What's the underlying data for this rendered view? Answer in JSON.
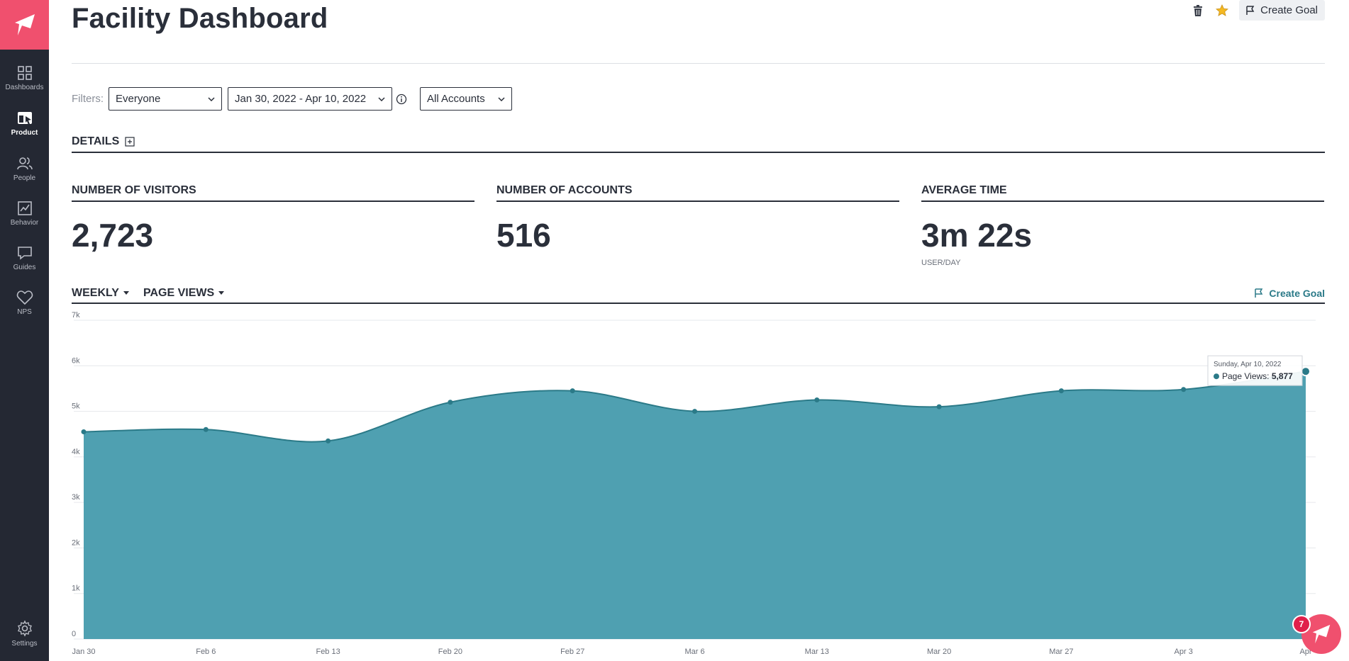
{
  "sidebar": {
    "items": [
      {
        "label": "Dashboards",
        "icon": "grid-icon"
      },
      {
        "label": "Product",
        "icon": "product-icon"
      },
      {
        "label": "People",
        "icon": "people-icon"
      },
      {
        "label": "Behavior",
        "icon": "chart-icon"
      },
      {
        "label": "Guides",
        "icon": "chat-icon"
      },
      {
        "label": "NPS",
        "icon": "heart-icon"
      }
    ],
    "settings_label": "Settings"
  },
  "header": {
    "title": "Facility Dashboard",
    "create_goal_label": "Create Goal"
  },
  "filters": {
    "label": "Filters:",
    "segment": "Everyone",
    "date_range": "Jan 30, 2022 - Apr 10, 2022",
    "accounts": "All Accounts"
  },
  "details": {
    "label": "DETAILS"
  },
  "metrics": [
    {
      "label": "NUMBER OF VISITORS",
      "value": "2,723",
      "sub": ""
    },
    {
      "label": "NUMBER OF ACCOUNTS",
      "value": "516",
      "sub": ""
    },
    {
      "label": "AVERAGE TIME",
      "value": "3m 22s",
      "sub": "USER/DAY"
    }
  ],
  "chart_controls": {
    "interval": "WEEKLY",
    "metric": "PAGE VIEWS",
    "create_goal_label": "Create Goal"
  },
  "chart_data": {
    "type": "area",
    "x": [
      "Jan 30",
      "Feb 6",
      "Feb 13",
      "Feb 20",
      "Feb 27",
      "Mar 6",
      "Mar 13",
      "Mar 20",
      "Mar 27",
      "Apr 3",
      "Apr"
    ],
    "series": [
      {
        "name": "Page Views",
        "values": [
          4550,
          4600,
          4350,
          5200,
          5450,
          5000,
          5250,
          5100,
          5450,
          5480,
          5877
        ]
      }
    ],
    "yticks": [
      "0",
      "1k",
      "2k",
      "3k",
      "4k",
      "5k",
      "6k",
      "7k"
    ],
    "ylim": [
      0,
      7000
    ],
    "grid": true,
    "tooltip": {
      "date": "Sunday, Apr 10, 2022",
      "label": "Page Views:",
      "value": "5,877"
    }
  },
  "notifications": {
    "count": "7"
  },
  "colors": {
    "accent": "#f0506e",
    "area_fill": "#4fa0b1",
    "area_line": "#2b7a88",
    "sidebar": "#242833"
  }
}
